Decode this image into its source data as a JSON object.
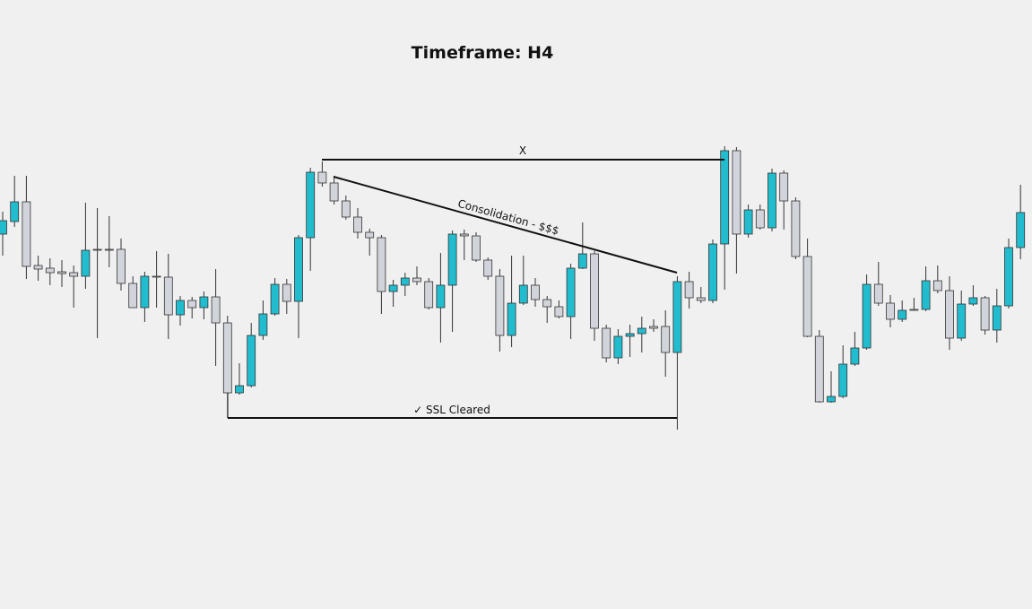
{
  "chart_data": {
    "type": "candlestick",
    "title": "Timeframe: H4",
    "annotations": {
      "range_high": "X",
      "consolidation": "Consolidation - $$$",
      "sweep": "✓ SSL Cleared"
    },
    "up_color": "#22bccf",
    "down_color": "#d2d4db",
    "ylim": [
      0,
      679
    ],
    "open": [
      418,
      432,
      454,
      383,
      380,
      376,
      375,
      371,
      401,
      401,
      401,
      363,
      336,
      371,
      370,
      328,
      344,
      336,
      348,
      319,
      241,
      249,
      305,
      329,
      362,
      343,
      414,
      487,
      475,
      455,
      437,
      420,
      414,
      354,
      361,
      369,
      365,
      336,
      361,
      418,
      416,
      389,
      371,
      305,
      341,
      361,
      345,
      337,
      326,
      380,
      396,
      313,
      280,
      304,
      307,
      315,
      315,
      286,
      365,
      347,
      344,
      407,
      511,
      418,
      445,
      425,
      486,
      455,
      393,
      304,
      231,
      237,
      273,
      291,
      362,
      341,
      323,
      334,
      334,
      366,
      355,
      302,
      340,
      347,
      311,
      338,
      403
    ],
    "high": [
      443,
      483,
      483,
      394,
      391,
      389,
      383,
      453,
      447,
      438,
      413,
      371,
      376,
      399,
      396,
      349,
      348,
      354,
      379,
      327,
      274,
      319,
      344,
      369,
      368,
      417,
      492,
      499,
      483,
      461,
      447,
      424,
      417,
      367,
      375,
      382,
      369,
      397,
      422,
      423,
      420,
      392,
      379,
      394,
      394,
      369,
      349,
      344,
      385,
      431,
      399,
      317,
      312,
      317,
      326,
      323,
      333,
      371,
      376,
      359,
      412,
      516,
      515,
      451,
      451,
      491,
      489,
      459,
      413,
      311,
      265,
      294,
      309,
      373,
      387,
      350,
      344,
      347,
      382,
      383,
      371,
      355,
      361,
      349,
      357,
      413,
      473
    ],
    "low": [
      394,
      426,
      368,
      366,
      361,
      359,
      336,
      357,
      302,
      381,
      355,
      336,
      320,
      336,
      301,
      316,
      324,
      323,
      271,
      213,
      239,
      247,
      300,
      327,
      329,
      302,
      377,
      471,
      451,
      434,
      413,
      394,
      329,
      337,
      349,
      361,
      334,
      297,
      309,
      389,
      387,
      367,
      287,
      292,
      339,
      337,
      319,
      324,
      301,
      379,
      299,
      275,
      273,
      281,
      286,
      309,
      259,
      200,
      335,
      341,
      341,
      356,
      374,
      414,
      423,
      421,
      423,
      390,
      303,
      230,
      230,
      235,
      271,
      289,
      338,
      314,
      320,
      333,
      332,
      352,
      289,
      299,
      338,
      306,
      297,
      335,
      390
    ],
    "close": [
      433,
      454,
      382,
      379,
      375,
      374,
      371,
      400,
      400,
      401,
      363,
      336,
      371,
      370,
      328,
      344,
      336,
      348,
      319,
      241,
      249,
      305,
      329,
      362,
      343,
      414,
      487,
      475,
      455,
      437,
      420,
      414,
      354,
      361,
      369,
      365,
      336,
      361,
      418,
      416,
      389,
      371,
      305,
      341,
      361,
      345,
      337,
      326,
      380,
      396,
      313,
      280,
      304,
      307,
      313,
      313,
      286,
      365,
      347,
      344,
      407,
      511,
      418,
      445,
      425,
      486,
      455,
      393,
      304,
      231,
      237,
      273,
      291,
      362,
      341,
      323,
      333,
      334,
      366,
      355,
      302,
      340,
      347,
      311,
      338,
      403,
      442
    ]
  }
}
